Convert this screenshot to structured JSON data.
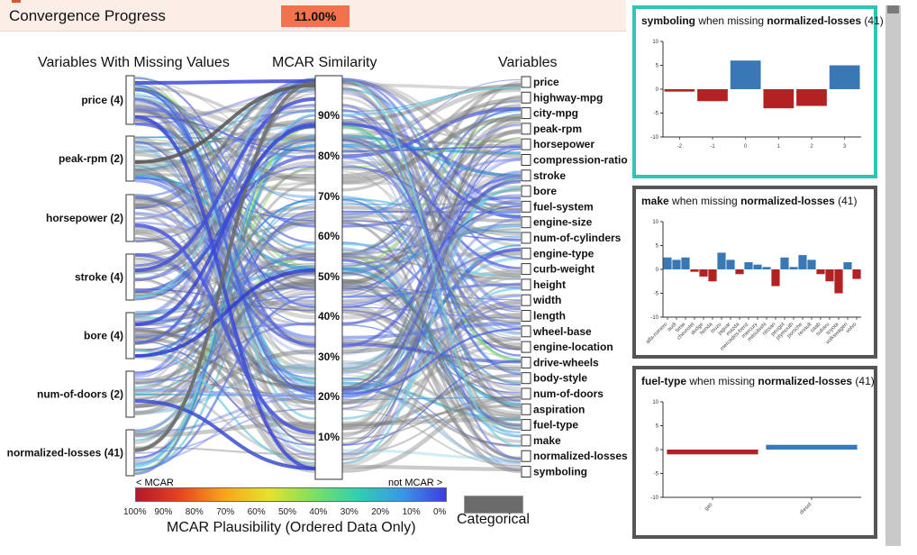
{
  "topbar": {
    "title": "Convergence Progress",
    "progress": "11.00%"
  },
  "headers": {
    "left": "Variables With Missing Values",
    "middle": "MCAR Similarity",
    "right": "Variables"
  },
  "left_vars": [
    "price (4)",
    "peak-rpm (2)",
    "horsepower (2)",
    "stroke (4)",
    "bore (4)",
    "num-of-doors (2)",
    "normalized-losses (41)"
  ],
  "axis_ticks": [
    "90%",
    "80%",
    "70%",
    "60%",
    "50%",
    "40%",
    "30%",
    "20%",
    "10%"
  ],
  "right_vars": [
    "price",
    "highway-mpg",
    "city-mpg",
    "peak-rpm",
    "horsepower",
    "compression-ratio",
    "stroke",
    "bore",
    "fuel-system",
    "engine-size",
    "num-of-cylinders",
    "engine-type",
    "curb-weight",
    "height",
    "width",
    "length",
    "wheel-base",
    "engine-location",
    "drive-wheels",
    "body-style",
    "num-of-doors",
    "aspiration",
    "fuel-type",
    "make",
    "normalized-losses",
    "symboling"
  ],
  "legend": {
    "left": "< MCAR",
    "right": "not MCAR >",
    "ticks": [
      "100%",
      "90%",
      "80%",
      "70%",
      "60%",
      "50%",
      "40%",
      "30%",
      "20%",
      "10%",
      "0%"
    ],
    "title": "MCAR Plausibility (Ordered Data Only)",
    "categorical": "Categorical"
  },
  "colors": {
    "red_bar": "#b22222",
    "blue_bar": "#3a78b5",
    "selected_border": "#2ec4b6",
    "panel_border": "#555555"
  },
  "panels": [
    {
      "var": "symboling",
      "mid": " when missing ",
      "target": "normalized-losses",
      "count": " (41)",
      "selected": true,
      "chart_data": {
        "type": "bar",
        "categories": [
          "-2",
          "-1",
          "0",
          "1",
          "2",
          "3"
        ],
        "values": [
          -0.5,
          -2.5,
          6,
          -4,
          -3.5,
          5
        ],
        "ylim": [
          -10,
          10
        ],
        "yticks": [
          "10",
          "5",
          "0",
          "-5",
          "-10"
        ]
      }
    },
    {
      "var": "make",
      "mid": " when missing ",
      "target": "normalized-losses",
      "count": " (41)",
      "selected": false,
      "chart_data": {
        "type": "bar",
        "categories": [
          "alfa-romero",
          "audi",
          "bmw",
          "chevrolet",
          "dodge",
          "honda",
          "isuzu",
          "jaguar",
          "mazda",
          "mercedes-benz",
          "mercury",
          "mitsubishi",
          "nissan",
          "peugot",
          "plymouth",
          "porsche",
          "renault",
          "saab",
          "subaru",
          "toyota",
          "volkswagen",
          "volvo"
        ],
        "values": [
          2.5,
          2,
          2.5,
          -0.5,
          -1.5,
          -2.5,
          3.5,
          2,
          -1,
          1.5,
          1,
          0.5,
          -3.5,
          2.5,
          0.5,
          3,
          2,
          -1,
          -2.5,
          -5,
          1.5,
          -2
        ],
        "ylim": [
          -10,
          10
        ],
        "yticks": [
          "10",
          "5",
          "0",
          "-5",
          "-10"
        ]
      }
    },
    {
      "var": "fuel-type",
      "mid": " when missing ",
      "target": "normalized-losses",
      "count": " (41)",
      "selected": false,
      "chart_data": {
        "type": "bar",
        "categories": [
          "gas",
          "diesel"
        ],
        "values": [
          -1,
          1
        ],
        "ylim": [
          -10,
          10
        ],
        "yticks": [
          "10",
          "5",
          "0",
          "-5",
          "-10"
        ]
      }
    }
  ]
}
